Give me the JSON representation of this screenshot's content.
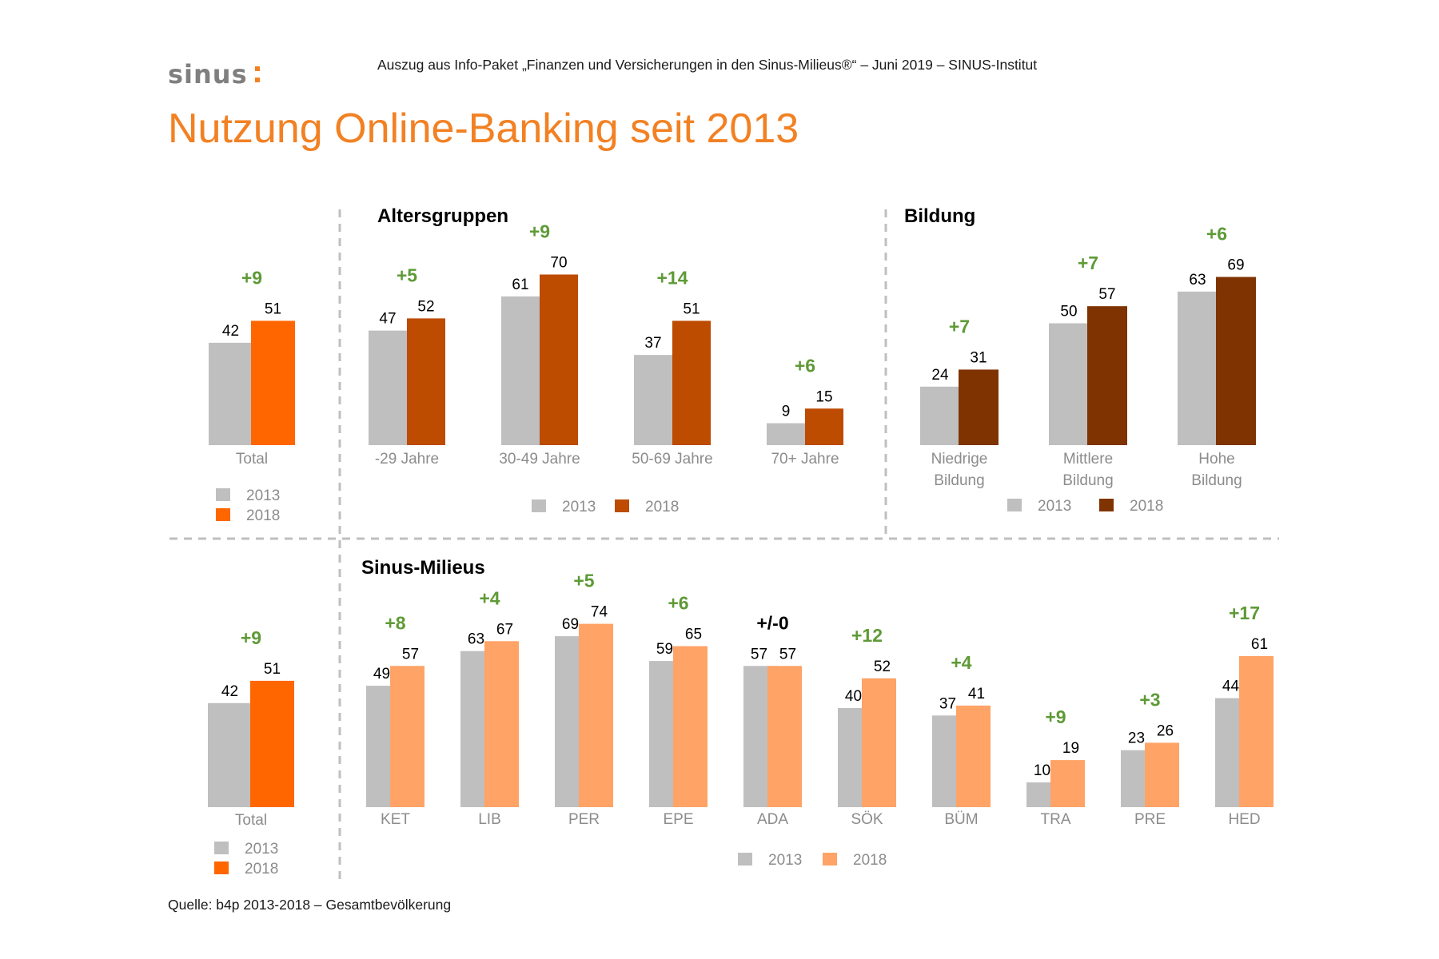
{
  "header": {
    "logo_text": "sinus",
    "subtitle": "Auszug aus Info-Paket „Finanzen und Versicherungen in den Sinus-Milieus®“ – Juni 2019 – SINUS-Institut",
    "title": "Nutzung Online-Banking seit 2013",
    "source": "Quelle: b4p 2013-2018 – Gesamtbevölkerung"
  },
  "colors": {
    "bar_2013": "#bfbfbf",
    "total_2018": "#ff6600",
    "alter_2018": "#bd4b00",
    "bildung_2018": "#7f3300",
    "milieu_2018": "#ffa366",
    "diff_positive": "#5e9a36",
    "diff_neutral": "#000000",
    "title": "#f28123",
    "logo": "#7f7f7f"
  },
  "chart_data": [
    {
      "id": "total_top",
      "type": "bar",
      "title": "",
      "categories": [
        "Total"
      ],
      "series": [
        {
          "name": "2013",
          "values": [
            42
          ]
        },
        {
          "name": "2018",
          "values": [
            51
          ]
        }
      ],
      "diff_labels": [
        "+9"
      ],
      "legend": [
        "2013",
        "2018"
      ],
      "grid": false
    },
    {
      "id": "alter",
      "type": "bar",
      "title": "Altersgruppen",
      "categories": [
        "-29 Jahre",
        "30-49 Jahre",
        "50-69 Jahre",
        "70+ Jahre"
      ],
      "series": [
        {
          "name": "2013",
          "values": [
            47,
            61,
            37,
            9
          ]
        },
        {
          "name": "2018",
          "values": [
            52,
            70,
            51,
            15
          ]
        }
      ],
      "diff_labels": [
        "+5",
        "+9",
        "+14",
        "+6"
      ],
      "legend": [
        "2013",
        "2018"
      ],
      "grid": false
    },
    {
      "id": "bildung",
      "type": "bar",
      "title": "Bildung",
      "categories": [
        [
          "Niedrige",
          "Bildung"
        ],
        [
          "Mittlere",
          "Bildung"
        ],
        [
          "Hohe",
          "Bildung"
        ]
      ],
      "series": [
        {
          "name": "2013",
          "values": [
            24,
            50,
            63
          ]
        },
        {
          "name": "2018",
          "values": [
            31,
            57,
            69
          ]
        }
      ],
      "diff_labels": [
        "+7",
        "+7",
        "+6"
      ],
      "legend": [
        "2013",
        "2018"
      ],
      "grid": false
    },
    {
      "id": "total_bottom",
      "type": "bar",
      "title": "",
      "categories": [
        "Total"
      ],
      "series": [
        {
          "name": "2013",
          "values": [
            42
          ]
        },
        {
          "name": "2018",
          "values": [
            51
          ]
        }
      ],
      "diff_labels": [
        "+9"
      ],
      "legend": [
        "2013",
        "2018"
      ],
      "grid": false
    },
    {
      "id": "milieus",
      "type": "bar",
      "title": "Sinus-Milieus",
      "categories": [
        "KET",
        "LIB",
        "PER",
        "EPE",
        "ADA",
        "SÖK",
        "BÜM",
        "TRA",
        "PRE",
        "HED"
      ],
      "series": [
        {
          "name": "2013",
          "values": [
            49,
            63,
            69,
            59,
            57,
            40,
            37,
            10,
            23,
            44
          ]
        },
        {
          "name": "2018",
          "values": [
            57,
            67,
            74,
            65,
            57,
            52,
            41,
            19,
            26,
            61
          ]
        }
      ],
      "diff_labels": [
        "+8",
        "+4",
        "+5",
        "+6",
        "+/-0",
        "+12",
        "+4",
        "+9",
        "+3",
        "+17"
      ],
      "legend": [
        "2013",
        "2018"
      ],
      "grid": false
    }
  ]
}
